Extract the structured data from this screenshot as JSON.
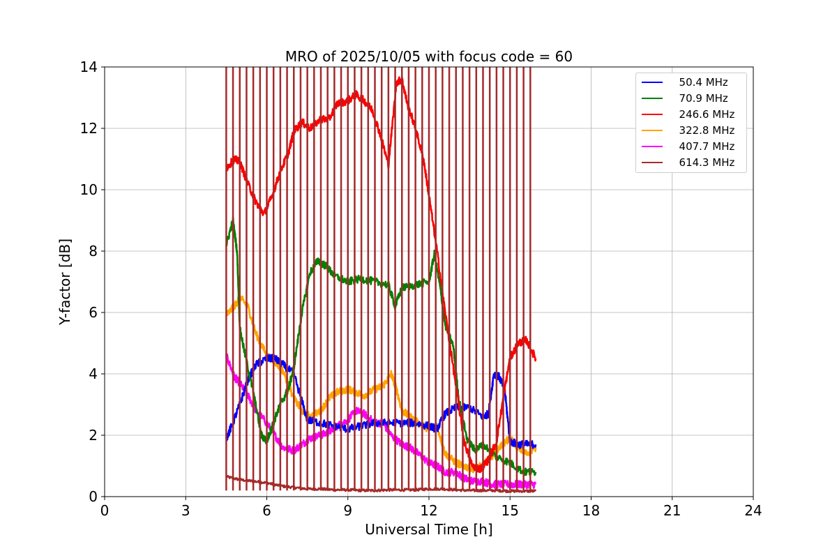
{
  "chart_data": {
    "type": "line",
    "title": "MRO of 2025/10/05 with focus code = 60",
    "xlabel": "Universal Time [h]",
    "ylabel": "Y-factor [dB]",
    "xlim": [
      0,
      24
    ],
    "ylim": [
      0,
      14
    ],
    "xticks": [
      "0",
      "3",
      "6",
      "9",
      "12",
      "15",
      "18",
      "21",
      "24"
    ],
    "yticks": [
      "0",
      "2",
      "4",
      "6",
      "8",
      "10",
      "12",
      "14"
    ],
    "grid": true,
    "legend_position": "top-right",
    "spike_times": [
      4.5,
      4.75,
      5.0,
      5.25,
      5.5,
      5.75,
      6.0,
      6.25,
      6.5,
      6.75,
      7.0,
      7.25,
      7.5,
      7.75,
      8.0,
      8.25,
      8.5,
      8.75,
      9.0,
      9.25,
      9.5,
      9.75,
      10.0,
      10.25,
      10.5,
      10.75,
      11.0,
      11.25,
      11.5,
      11.75,
      12.0,
      12.25,
      12.5,
      12.75,
      13.0,
      13.25,
      13.5,
      13.75,
      14.0,
      14.25,
      14.5,
      14.75,
      15.0,
      15.25,
      15.5,
      15.75
    ],
    "spike_top": 14,
    "series": [
      {
        "name": "  50.4 MHz",
        "color": "#0000ff",
        "x": [
          4.5,
          4.7,
          5.0,
          5.3,
          5.6,
          6.0,
          6.3,
          6.6,
          7.0,
          7.5,
          8.0,
          8.5,
          9.0,
          9.5,
          10.0,
          10.5,
          11.0,
          11.5,
          12.0,
          12.3,
          12.6,
          13.0,
          13.5,
          14.0,
          14.2,
          14.4,
          14.6,
          14.8,
          15.0,
          15.3,
          15.6,
          15.95
        ],
        "y": [
          1.9,
          2.3,
          3.0,
          3.8,
          4.3,
          4.5,
          4.5,
          4.3,
          4.0,
          2.5,
          2.4,
          2.3,
          2.2,
          2.3,
          2.4,
          2.4,
          2.4,
          2.4,
          2.3,
          2.2,
          2.7,
          2.9,
          2.9,
          2.6,
          2.7,
          4.0,
          3.9,
          3.5,
          1.8,
          1.7,
          1.7,
          1.7
        ]
      },
      {
        "name": "  70.9 MHz",
        "color": "#008000",
        "x": [
          4.5,
          4.75,
          4.9,
          5.0,
          5.2,
          5.5,
          5.8,
          6.0,
          6.2,
          6.5,
          6.8,
          7.0,
          7.3,
          7.6,
          7.9,
          8.2,
          8.5,
          9.0,
          9.5,
          10.0,
          10.5,
          10.75,
          11.0,
          11.5,
          12.0,
          12.2,
          12.4,
          12.6,
          12.9,
          13.1,
          13.4,
          13.7,
          14.0,
          14.5,
          15.0,
          15.5,
          15.95
        ],
        "y": [
          8.2,
          9.0,
          8.0,
          5.5,
          4.6,
          3.4,
          2.0,
          1.8,
          2.3,
          3.0,
          3.5,
          4.2,
          6.0,
          7.3,
          7.7,
          7.5,
          7.2,
          7.0,
          7.1,
          7.0,
          6.9,
          6.2,
          6.8,
          6.9,
          7.0,
          7.9,
          6.9,
          5.6,
          4.9,
          3.2,
          1.9,
          1.5,
          1.7,
          1.3,
          1.1,
          0.8,
          0.8
        ]
      },
      {
        "name": "  246.6 MHz",
        "color": "#ff0000",
        "x": [
          4.5,
          4.8,
          5.0,
          5.3,
          5.6,
          5.9,
          6.2,
          6.5,
          6.8,
          7.0,
          7.3,
          7.6,
          8.0,
          8.3,
          8.6,
          9.0,
          9.3,
          9.6,
          9.9,
          10.2,
          10.5,
          10.8,
          11.0,
          11.2,
          11.5,
          11.8,
          12.0,
          12.3,
          12.6,
          13.0,
          13.3,
          13.6,
          13.9,
          14.2,
          14.5,
          14.8,
          15.0,
          15.3,
          15.6,
          15.95
        ],
        "y": [
          10.7,
          11.0,
          10.9,
          10.2,
          9.6,
          9.2,
          9.8,
          10.6,
          11.2,
          11.9,
          12.2,
          12.0,
          12.3,
          12.3,
          12.8,
          12.9,
          13.1,
          12.9,
          12.6,
          11.8,
          10.8,
          13.5,
          13.6,
          12.8,
          12.0,
          11.0,
          9.8,
          8.0,
          6.0,
          3.6,
          1.8,
          1.0,
          0.9,
          1.2,
          1.8,
          3.5,
          4.5,
          5.0,
          5.1,
          4.5
        ]
      },
      {
        "name": "  322.8 MHz",
        "color": "#ffa500",
        "x": [
          4.5,
          4.8,
          5.0,
          5.3,
          5.6,
          6.0,
          6.3,
          6.6,
          7.0,
          7.3,
          7.6,
          8.0,
          8.3,
          8.6,
          9.0,
          9.3,
          9.6,
          10.0,
          10.3,
          10.6,
          10.8,
          11.0,
          11.3,
          11.6,
          12.0,
          12.3,
          12.6,
          13.0,
          13.3,
          13.6,
          14.0,
          14.3,
          14.6,
          15.0,
          15.3,
          15.6,
          15.95
        ],
        "y": [
          5.9,
          6.2,
          6.5,
          6.2,
          5.3,
          4.6,
          4.4,
          4.1,
          3.2,
          2.8,
          2.6,
          2.8,
          3.2,
          3.4,
          3.5,
          3.4,
          3.3,
          3.5,
          3.6,
          4.0,
          3.5,
          2.8,
          2.6,
          2.4,
          2.2,
          2.3,
          1.4,
          1.1,
          1.0,
          0.9,
          1.0,
          1.3,
          1.6,
          1.9,
          1.6,
          1.4,
          1.6
        ]
      },
      {
        "name": "  407.7 MHz",
        "color": "#ff00ff",
        "x": [
          4.5,
          4.8,
          5.0,
          5.3,
          5.6,
          6.0,
          6.3,
          6.6,
          7.0,
          7.3,
          7.6,
          8.0,
          8.3,
          8.6,
          9.0,
          9.3,
          9.6,
          10.0,
          10.3,
          10.6,
          11.0,
          11.3,
          11.6,
          12.0,
          12.3,
          12.6,
          13.0,
          13.3,
          13.6,
          14.0,
          14.3,
          14.6,
          15.0,
          15.3,
          15.6,
          15.95
        ],
        "y": [
          4.6,
          3.9,
          3.7,
          3.3,
          2.8,
          2.4,
          2.0,
          1.6,
          1.5,
          1.7,
          1.9,
          2.0,
          2.1,
          2.3,
          2.5,
          2.8,
          2.7,
          2.4,
          2.4,
          2.0,
          1.7,
          1.6,
          1.4,
          1.1,
          1.0,
          0.8,
          0.8,
          0.6,
          0.5,
          0.5,
          0.4,
          0.4,
          0.4,
          0.4,
          0.4,
          0.4
        ]
      },
      {
        "name": "  614.3 MHz",
        "color": "#a52a2a",
        "x": [
          4.5,
          5.0,
          5.5,
          6.0,
          6.5,
          7.0,
          7.5,
          8.0,
          8.5,
          9.0,
          9.5,
          10.0,
          10.5,
          11.0,
          11.5,
          12.0,
          12.5,
          13.0,
          13.5,
          14.0,
          14.5,
          15.0,
          15.5,
          15.95
        ],
        "y": [
          0.65,
          0.55,
          0.5,
          0.45,
          0.35,
          0.3,
          0.25,
          0.25,
          0.22,
          0.22,
          0.2,
          0.2,
          0.22,
          0.22,
          0.22,
          0.25,
          0.25,
          0.22,
          0.2,
          0.2,
          0.2,
          0.18,
          0.18,
          0.18
        ]
      }
    ]
  }
}
